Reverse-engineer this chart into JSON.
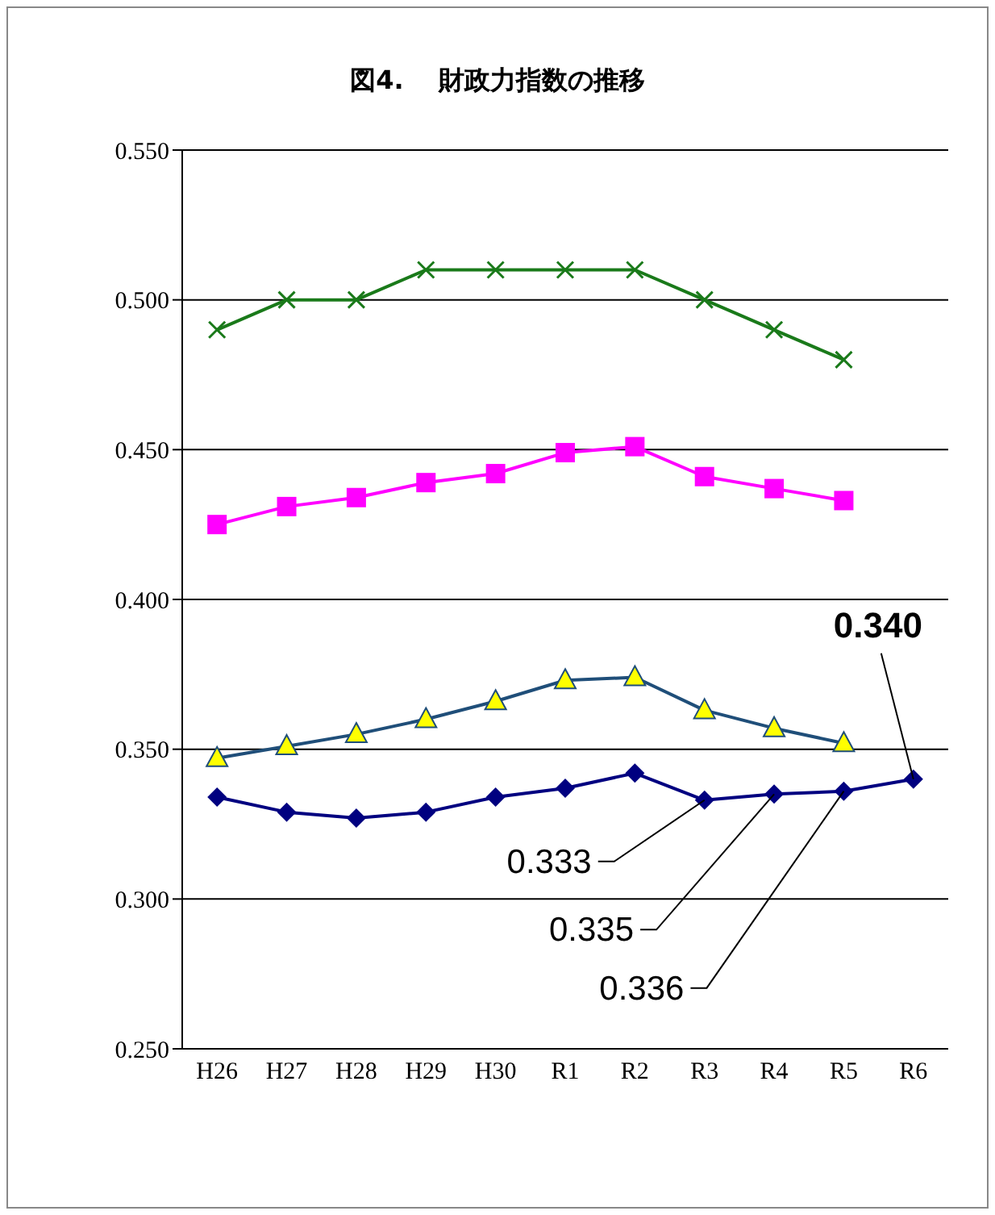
{
  "chart_data": {
    "type": "line",
    "title": "図4.　 財政力指数の推移",
    "categories": [
      "H26",
      "H27",
      "H28",
      "H29",
      "H30",
      "R1",
      "R2",
      "R3",
      "R4",
      "R5",
      "R6"
    ],
    "series": [
      {
        "color": "#1a7a1a",
        "marker": "cross",
        "values": [
          0.49,
          0.5,
          0.5,
          0.51,
          0.51,
          0.51,
          0.51,
          0.5,
          0.49,
          0.48,
          null
        ]
      },
      {
        "color": "#ff00ff",
        "marker": "square",
        "values": [
          0.425,
          0.431,
          0.434,
          0.439,
          0.442,
          0.449,
          0.451,
          0.441,
          0.437,
          0.433,
          null
        ]
      },
      {
        "color": "#1f4e79",
        "marker": "triangle",
        "values": [
          0.347,
          0.351,
          0.355,
          0.36,
          0.366,
          0.373,
          0.374,
          0.363,
          0.357,
          0.352,
          null
        ]
      },
      {
        "color": "#000080",
        "marker": "diamond",
        "values": [
          0.334,
          0.329,
          0.327,
          0.329,
          0.334,
          0.337,
          0.342,
          0.333,
          0.335,
          0.336,
          0.34
        ]
      }
    ],
    "ylim": [
      0.25,
      0.55
    ],
    "yticks": [
      {
        "value": 0.25,
        "label": "0.250"
      },
      {
        "value": 0.3,
        "label": "0.300"
      },
      {
        "value": 0.35,
        "label": "0.350"
      },
      {
        "value": 0.4,
        "label": "0.400"
      },
      {
        "value": 0.45,
        "label": "0.450"
      },
      {
        "value": 0.5,
        "label": "0.500"
      },
      {
        "value": 0.55,
        "label": "0.550"
      }
    ],
    "grid": "y",
    "legend": false,
    "annotations": [
      {
        "text": "0.340",
        "x": "R6",
        "y": 0.34
      },
      {
        "text": "0.333",
        "x": "R3",
        "y": 0.333
      },
      {
        "text": "0.335",
        "x": "R4",
        "y": 0.335
      },
      {
        "text": "0.336",
        "x": "R5",
        "y": 0.336
      }
    ]
  }
}
